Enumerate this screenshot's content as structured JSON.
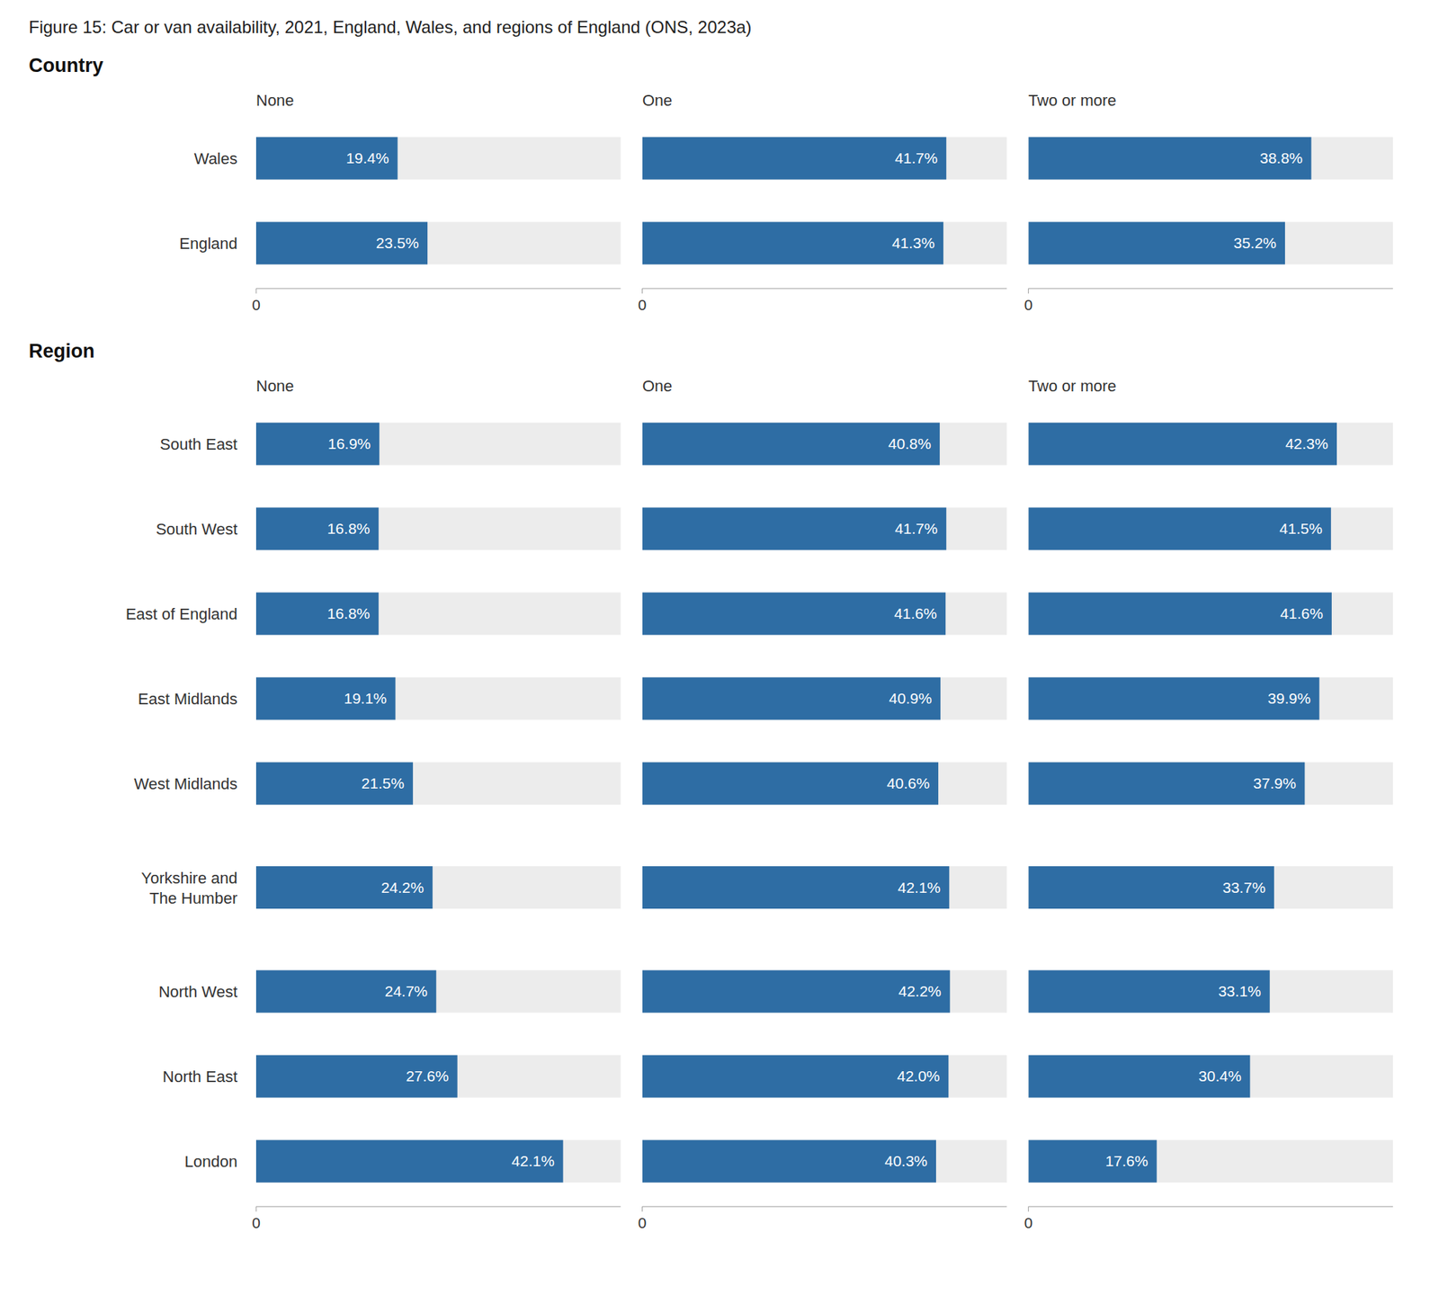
{
  "chart_data": [
    {
      "type": "bar",
      "orientation": "horizontal",
      "title": "Figure 15: Car or van availability, 2021, England, Wales, and regions of England (ONS, 2023a)",
      "subtitle": "Country",
      "categories": [
        "Wales",
        "England"
      ],
      "series": [
        {
          "name": "None",
          "values": [
            19.4,
            23.5
          ],
          "value_labels": [
            "19.4%",
            "23.5%"
          ]
        },
        {
          "name": "One",
          "values": [
            41.7,
            41.3
          ],
          "value_labels": [
            "41.7%",
            "41.3%"
          ]
        },
        {
          "name": "Two or more",
          "values": [
            38.8,
            35.2
          ],
          "value_labels": [
            "38.8%",
            "35.2%"
          ]
        }
      ],
      "color": "#2e6da4",
      "xlim": [
        0,
        50
      ],
      "xticks": [
        0
      ],
      "data_labels": true,
      "grid": false
    },
    {
      "type": "bar",
      "orientation": "horizontal",
      "subtitle": "Region",
      "categories": [
        "South East",
        "South West",
        "East of England",
        "East Midlands",
        "West Midlands",
        "Yorkshire and\nThe Humber",
        "North West",
        "North East",
        "London"
      ],
      "series": [
        {
          "name": "None",
          "values": [
            16.9,
            16.8,
            16.8,
            19.1,
            21.5,
            24.2,
            24.7,
            27.6,
            42.1
          ],
          "value_labels": [
            "16.9%",
            "16.8%",
            "16.8%",
            "19.1%",
            "21.5%",
            "24.2%",
            "24.7%",
            "27.6%",
            "42.1%"
          ]
        },
        {
          "name": "One",
          "values": [
            40.8,
            41.7,
            41.6,
            40.9,
            40.6,
            42.1,
            42.2,
            42.0,
            40.3
          ],
          "value_labels": [
            "40.8%",
            "41.7%",
            "41.6%",
            "40.9%",
            "40.6%",
            "42.1%",
            "42.2%",
            "42.0%",
            "40.3%"
          ]
        },
        {
          "name": "Two or more",
          "values": [
            42.3,
            41.5,
            41.6,
            39.9,
            37.9,
            33.7,
            33.1,
            30.4,
            17.6
          ],
          "value_labels": [
            "42.3%",
            "41.5%",
            "41.6%",
            "39.9%",
            "37.9%",
            "33.7%",
            "33.1%",
            "30.4%",
            "17.6%"
          ]
        }
      ],
      "color": "#2e6da4",
      "xlim": [
        0,
        50
      ],
      "xticks": [
        0
      ],
      "data_labels": true,
      "grid": false
    }
  ]
}
